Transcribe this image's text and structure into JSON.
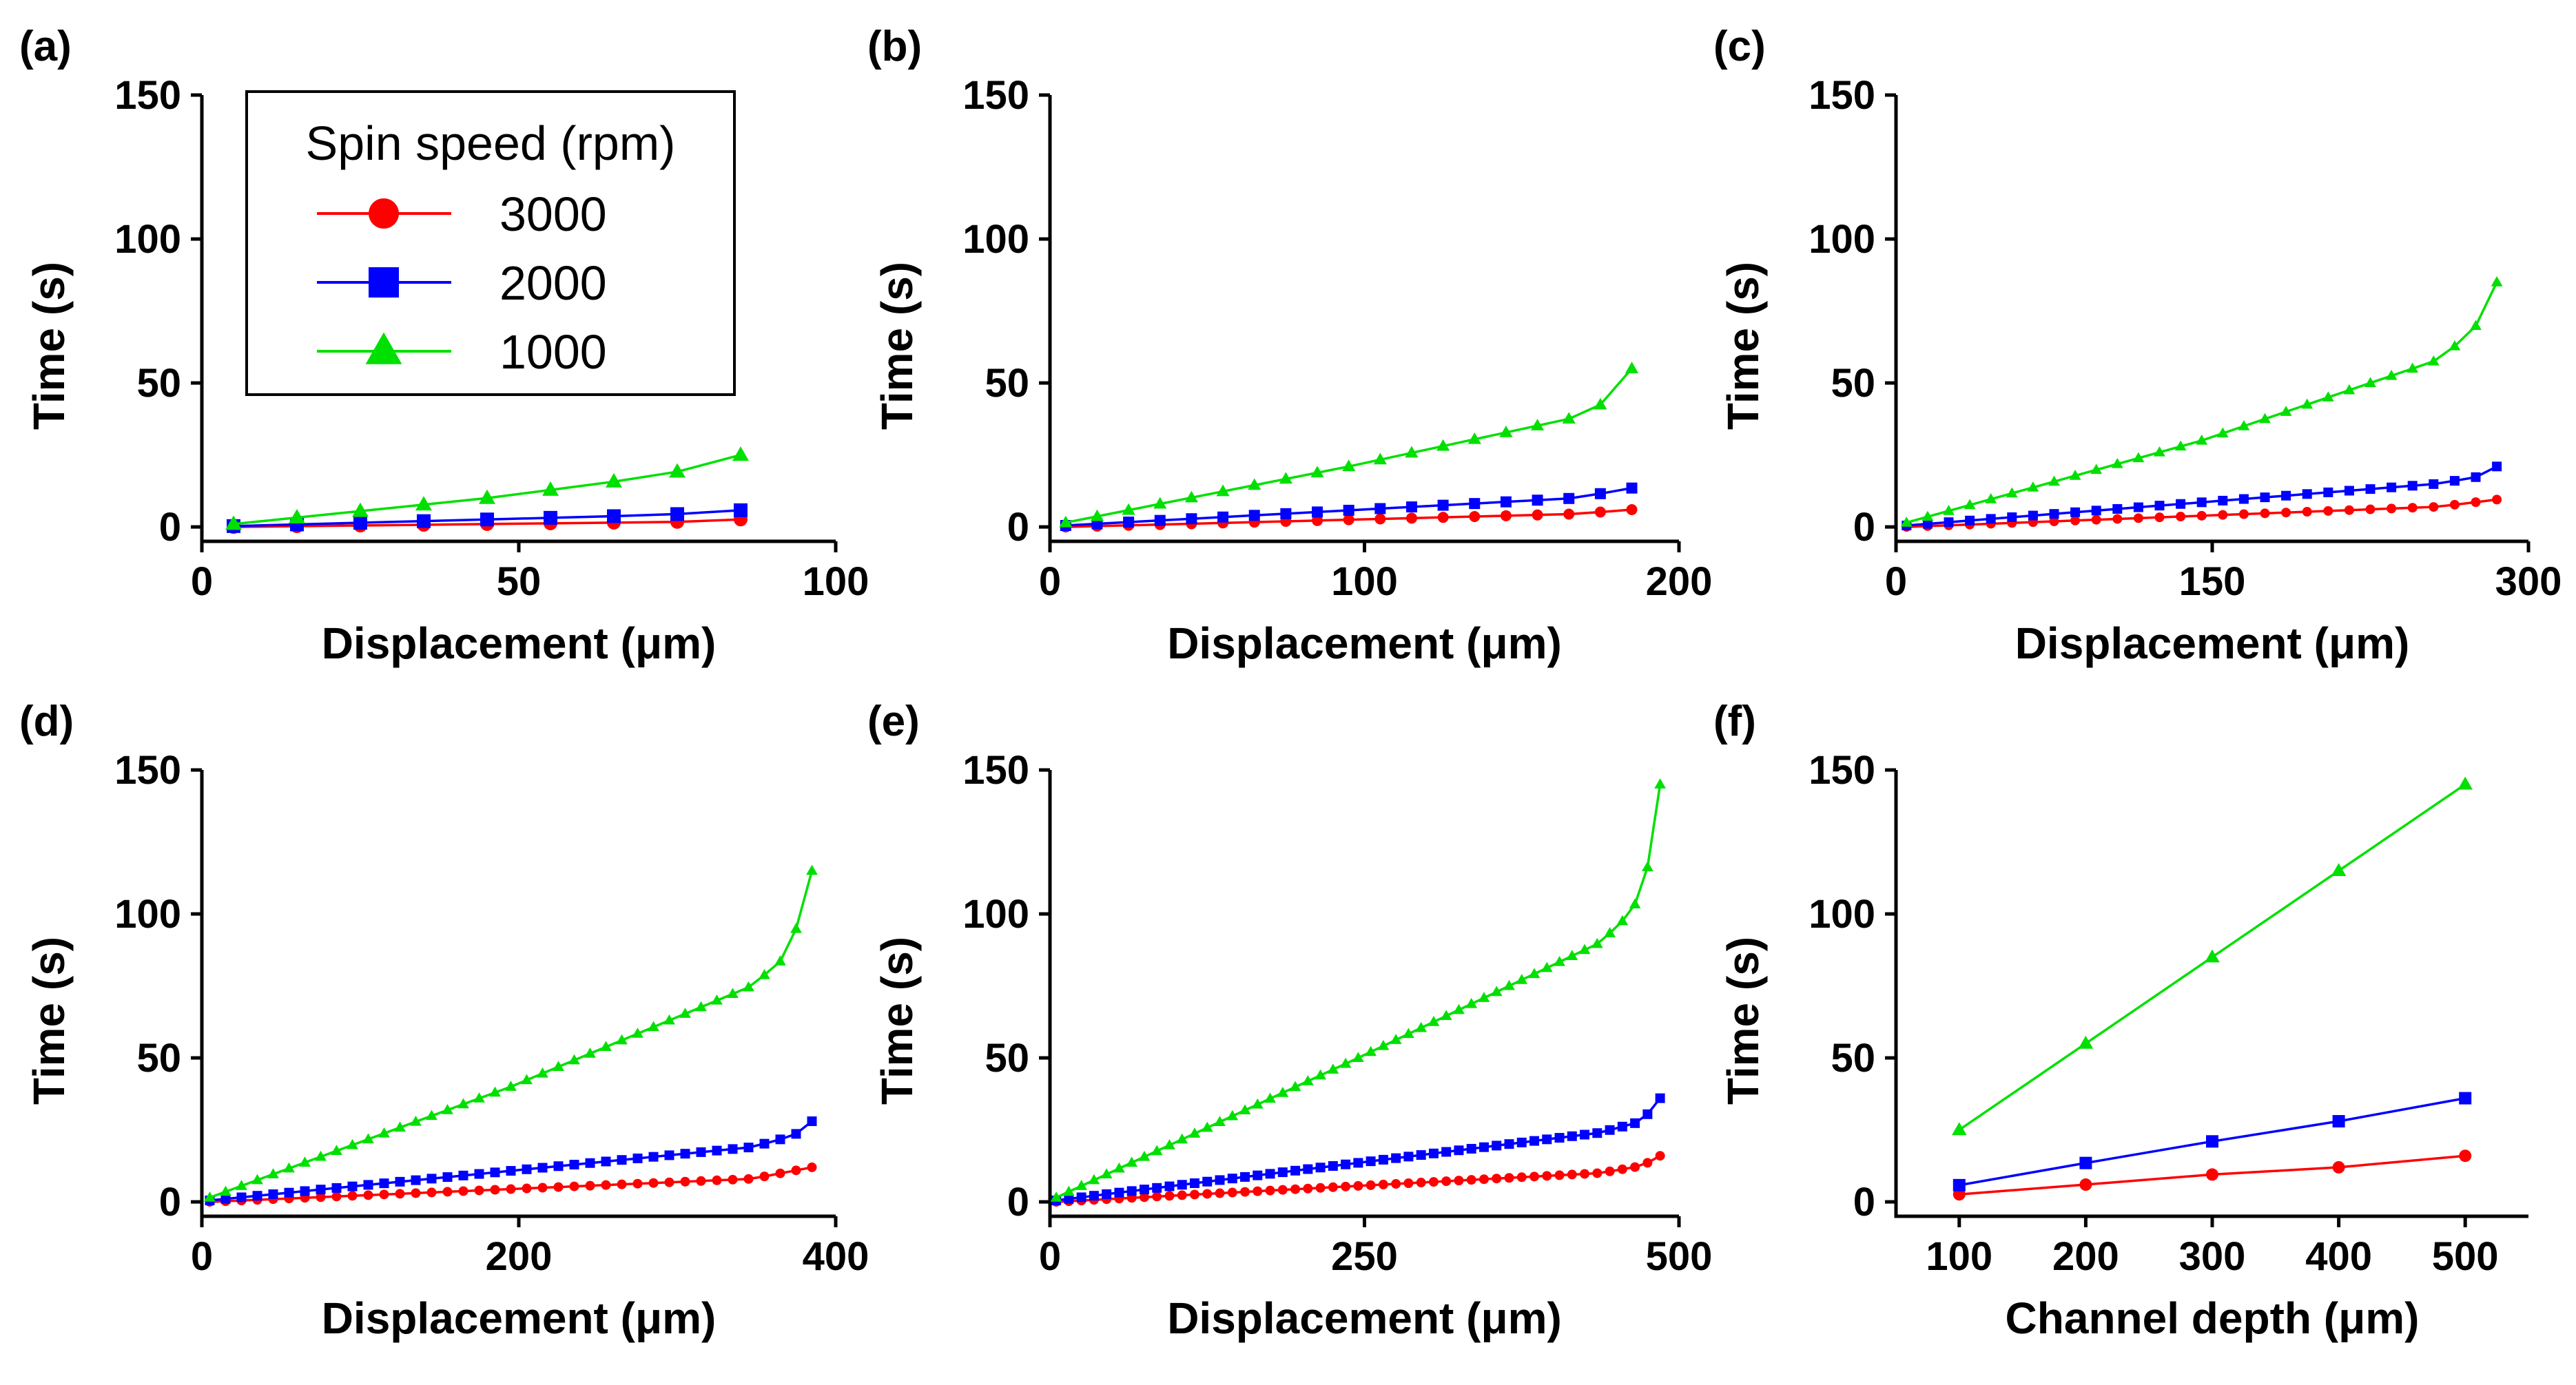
{
  "colors": {
    "3000": "#ff0000",
    "2000": "#0000ff",
    "1000": "#00e000"
  },
  "legend": {
    "title": "Spin speed (rpm)",
    "entries": [
      {
        "label": "3000",
        "color": "#ff0000",
        "marker": "circle"
      },
      {
        "label": "2000",
        "color": "#0000ff",
        "marker": "square"
      },
      {
        "label": "1000",
        "color": "#00e000",
        "marker": "triangle"
      }
    ]
  },
  "chart_data": [
    {
      "panel": "(a)",
      "type": "line",
      "xlabel": "Displacement (μm)",
      "ylabel": "Time (s)",
      "xlim": [
        0,
        100
      ],
      "ylim": [
        -5,
        150
      ],
      "xticks": [
        0,
        50,
        100
      ],
      "yticks": [
        0,
        50,
        100,
        150
      ],
      "x_range": [
        5,
        85
      ],
      "x_points": 9,
      "series": [
        {
          "name": "3000",
          "color": "#ff0000",
          "marker": "circle",
          "profile": [
            [
              0,
              0
            ],
            [
              0.9,
              1.8
            ],
            [
              1,
              2.6
            ]
          ]
        },
        {
          "name": "2000",
          "color": "#0000ff",
          "marker": "square",
          "profile": [
            [
              0,
              0.3
            ],
            [
              0.85,
              4.2
            ],
            [
              1,
              5.8
            ]
          ]
        },
        {
          "name": "1000",
          "color": "#00e000",
          "marker": "triangle",
          "profile": [
            [
              0,
              1
            ],
            [
              0.5,
              10
            ],
            [
              0.85,
              18
            ],
            [
              1,
              25
            ]
          ]
        }
      ]
    },
    {
      "panel": "(b)",
      "type": "line",
      "xlabel": "Displacement (μm)",
      "ylabel": "Time (s)",
      "xlim": [
        0,
        200
      ],
      "ylim": [
        -5,
        150
      ],
      "xticks": [
        0,
        100,
        200
      ],
      "yticks": [
        0,
        50,
        100,
        150
      ],
      "x_range": [
        5,
        185
      ],
      "x_points": 19,
      "series": [
        {
          "name": "3000",
          "color": "#ff0000",
          "marker": "circle",
          "profile": [
            [
              0,
              0
            ],
            [
              0.9,
              4.5
            ],
            [
              1,
              6
            ]
          ]
        },
        {
          "name": "2000",
          "color": "#0000ff",
          "marker": "square",
          "profile": [
            [
              0,
              0.5
            ],
            [
              0.9,
              10
            ],
            [
              1,
              13.5
            ]
          ]
        },
        {
          "name": "1000",
          "color": "#00e000",
          "marker": "triangle",
          "profile": [
            [
              0,
              1.5
            ],
            [
              0.5,
              21
            ],
            [
              0.9,
              38
            ],
            [
              0.96,
              44
            ],
            [
              1,
              55
            ]
          ]
        }
      ]
    },
    {
      "panel": "(c)",
      "type": "line",
      "xlabel": "Displacement (μm)",
      "ylabel": "Time (s)",
      "xlim": [
        0,
        300
      ],
      "ylim": [
        -5,
        150
      ],
      "xticks": [
        0,
        150,
        300
      ],
      "yticks": [
        0,
        50,
        100,
        150
      ],
      "x_range": [
        5,
        285
      ],
      "x_points": 29,
      "series": [
        {
          "name": "3000",
          "color": "#ff0000",
          "marker": "circle",
          "profile": [
            [
              0,
              0
            ],
            [
              0.9,
              7
            ],
            [
              1,
              9.5
            ]
          ]
        },
        {
          "name": "2000",
          "color": "#0000ff",
          "marker": "square",
          "profile": [
            [
              0,
              0.5
            ],
            [
              0.9,
              15
            ],
            [
              0.97,
              17.5
            ],
            [
              1,
              21
            ]
          ]
        },
        {
          "name": "1000",
          "color": "#00e000",
          "marker": "triangle",
          "profile": [
            [
              0,
              1.5
            ],
            [
              0.5,
              30
            ],
            [
              0.9,
              58
            ],
            [
              0.96,
              68
            ],
            [
              1,
              85
            ]
          ]
        }
      ]
    },
    {
      "panel": "(d)",
      "type": "line",
      "xlabel": "Displacement (μm)",
      "ylabel": "Time (s)",
      "xlim": [
        0,
        400
      ],
      "ylim": [
        -5,
        150
      ],
      "xticks": [
        0,
        200,
        400
      ],
      "yticks": [
        0,
        50,
        100,
        150
      ],
      "x_range": [
        5,
        385
      ],
      "x_points": 39,
      "series": [
        {
          "name": "3000",
          "color": "#ff0000",
          "marker": "circle",
          "profile": [
            [
              0,
              0
            ],
            [
              0.9,
              8
            ],
            [
              1,
              12
            ]
          ]
        },
        {
          "name": "2000",
          "color": "#0000ff",
          "marker": "square",
          "profile": [
            [
              0,
              0.5
            ],
            [
              0.9,
              19
            ],
            [
              0.97,
              23
            ],
            [
              1,
              28
            ]
          ]
        },
        {
          "name": "1000",
          "color": "#00e000",
          "marker": "triangle",
          "profile": [
            [
              0,
              1.5
            ],
            [
              0.5,
              40
            ],
            [
              0.9,
              75
            ],
            [
              0.95,
              84
            ],
            [
              0.97,
              92
            ],
            [
              1,
              115
            ]
          ]
        }
      ]
    },
    {
      "panel": "(e)",
      "type": "line",
      "xlabel": "Displacement (μm)",
      "ylabel": "Time (s)",
      "xlim": [
        0,
        500
      ],
      "ylim": [
        -5,
        150
      ],
      "xticks": [
        0,
        250,
        500
      ],
      "yticks": [
        0,
        50,
        100,
        150
      ],
      "x_range": [
        5,
        485
      ],
      "x_points": 49,
      "series": [
        {
          "name": "3000",
          "color": "#ff0000",
          "marker": "circle",
          "profile": [
            [
              0,
              0
            ],
            [
              0.9,
              10
            ],
            [
              0.97,
              12.5
            ],
            [
              1,
              16
            ]
          ]
        },
        {
          "name": "2000",
          "color": "#0000ff",
          "marker": "square",
          "profile": [
            [
              0,
              0.5
            ],
            [
              0.9,
              24
            ],
            [
              0.97,
              28
            ],
            [
              1,
              36
            ]
          ]
        },
        {
          "name": "1000",
          "color": "#00e000",
          "marker": "triangle",
          "profile": [
            [
              0,
              1.5
            ],
            [
              0.5,
              50
            ],
            [
              0.9,
              90
            ],
            [
              0.95,
              100
            ],
            [
              0.97,
              108
            ],
            [
              0.98,
              117
            ],
            [
              1,
              145
            ]
          ]
        }
      ]
    },
    {
      "panel": "(f)",
      "type": "line",
      "xlabel": "Channel depth (μm)",
      "ylabel": "Time (s)",
      "xlim": [
        50,
        550
      ],
      "ylim": [
        -5,
        150
      ],
      "xticks": [
        100,
        200,
        300,
        400,
        500
      ],
      "yticks": [
        0,
        50,
        100,
        150
      ],
      "series": [
        {
          "name": "3000",
          "color": "#ff0000",
          "marker": "circle",
          "x": [
            100,
            200,
            300,
            400,
            500
          ],
          "y": [
            2.6,
            6,
            9.5,
            12,
            16
          ]
        },
        {
          "name": "2000",
          "color": "#0000ff",
          "marker": "square",
          "x": [
            100,
            200,
            300,
            400,
            500
          ],
          "y": [
            5.8,
            13.5,
            21,
            28,
            36
          ]
        },
        {
          "name": "1000",
          "color": "#00e000",
          "marker": "triangle",
          "x": [
            100,
            200,
            300,
            400,
            500
          ],
          "y": [
            25,
            55,
            85,
            115,
            145
          ]
        }
      ]
    }
  ]
}
